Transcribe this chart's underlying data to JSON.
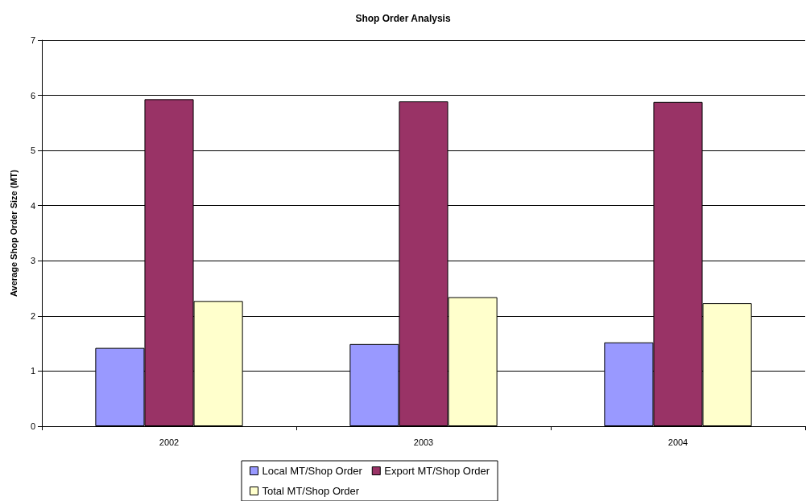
{
  "chart_data": {
    "type": "bar",
    "title": "Shop Order Analysis",
    "ylabel": "Average Shop Order Size (MT)",
    "categories": [
      "2002",
      "2003",
      "2004"
    ],
    "series": [
      {
        "name": "Local MT/Shop Order",
        "color": "#9999ff",
        "values": [
          1.42,
          1.49,
          1.52
        ]
      },
      {
        "name": "Export MT/Shop Order",
        "color": "#993366",
        "values": [
          5.93,
          5.89,
          5.88
        ]
      },
      {
        "name": "Total MT/Shop Order",
        "color": "#ffffcc",
        "values": [
          2.27,
          2.34,
          2.23
        ]
      }
    ],
    "ylim": [
      0,
      7
    ],
    "yticks": [
      0,
      1,
      2,
      3,
      4,
      5,
      6,
      7
    ],
    "grid": "y",
    "legend": "bottom"
  }
}
